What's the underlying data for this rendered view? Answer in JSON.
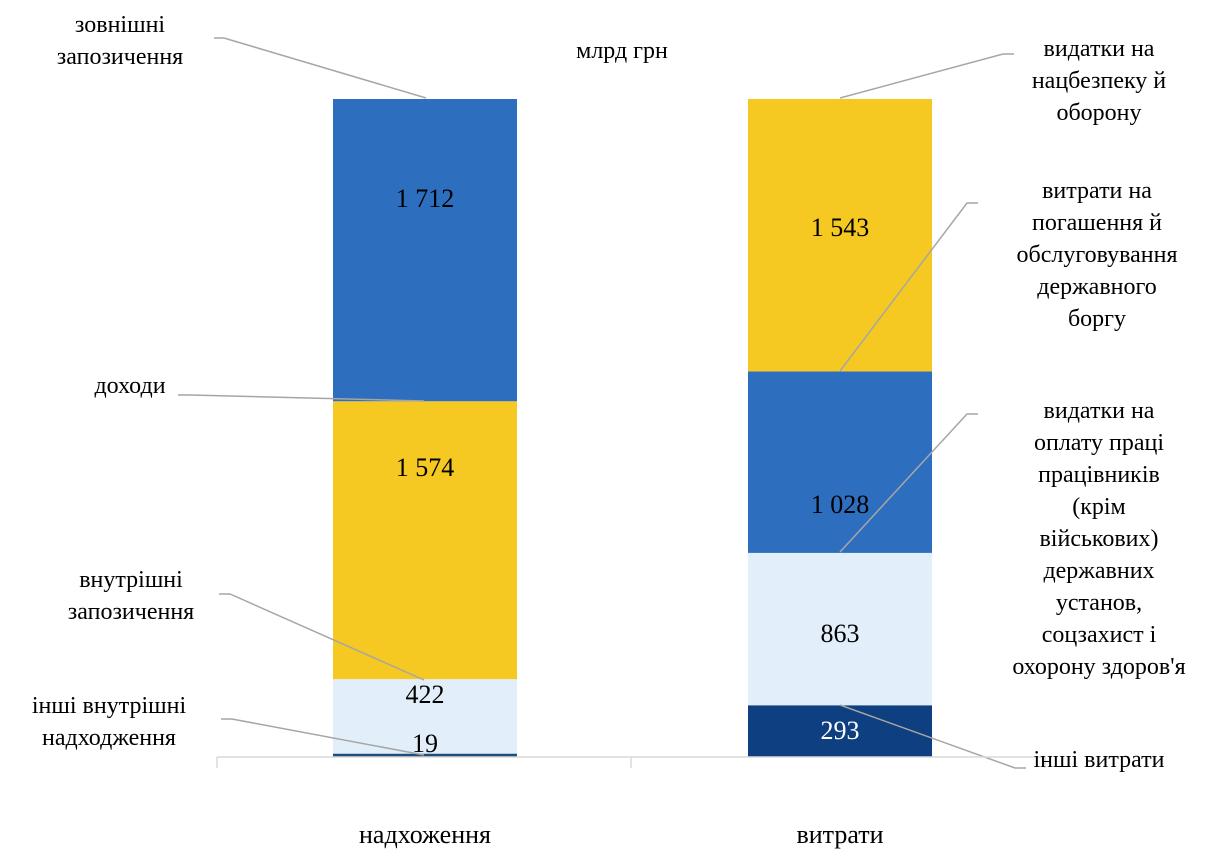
{
  "chart_data": {
    "type": "bar",
    "stacked": true,
    "ylabel": "млрд грн",
    "categories": [
      "надхоження",
      "витрати"
    ],
    "columns": [
      {
        "category": "надхоження",
        "segments": [
          {
            "name": "інші внутрішні надходження",
            "value": 19,
            "value_label": "19",
            "color": "#1f4e79",
            "label_color": "#000000"
          },
          {
            "name": "внутрішні запозичення",
            "value": 422,
            "value_label": "422",
            "color": "#e2eefa",
            "label_color": "#000000"
          },
          {
            "name": "доходи",
            "value": 1574,
            "value_label": "1 574",
            "color": "#f5c921",
            "label_color": "#000000"
          },
          {
            "name": "зовнішні запозичення",
            "value": 1712,
            "value_label": "1 712",
            "color": "#2e6ebe",
            "label_color": "#000000"
          }
        ]
      },
      {
        "category": "витрати",
        "segments": [
          {
            "name": "інші витрати",
            "value": 293,
            "value_label": "293",
            "color": "#0e3f80",
            "label_color": "#ffffff"
          },
          {
            "name": "видатки на оплату праці працівників (крім військових) державних установ, соцзахист і охорону здоров'я",
            "value": 863,
            "value_label": "863",
            "color": "#e2eefa",
            "label_color": "#000000"
          },
          {
            "name": "витрати на погашення й обслуговування державного боргу",
            "value": 1028,
            "value_label": "1 028",
            "color": "#2e6ebe",
            "label_color": "#000000"
          },
          {
            "name": "видатки на нацбезпеку й оборону",
            "value": 1543,
            "value_label": "1 543",
            "color": "#f5c921",
            "label_color": "#000000"
          }
        ]
      }
    ],
    "callouts": [
      {
        "lines": [
          "зовнішні",
          "запозичення"
        ]
      },
      {
        "lines": [
          "доходи"
        ]
      },
      {
        "lines": [
          "внутрішні",
          "запозичення"
        ]
      },
      {
        "lines": [
          "інші внутрішні",
          "надходження"
        ]
      },
      {
        "lines": [
          "видатки на",
          "нацбезпеку й",
          "оборону"
        ]
      },
      {
        "lines": [
          "витрати на",
          "погашення й",
          "обслуговування",
          "державного",
          "боргу"
        ]
      },
      {
        "lines": [
          "видатки на",
          "оплату праці",
          "працівників",
          "(крім",
          "військових)",
          "державних",
          "установ,",
          "соцзахист і",
          "охорону здоров'я"
        ]
      },
      {
        "lines": [
          "інші витрати"
        ]
      }
    ],
    "grid": false,
    "legend": "none"
  }
}
